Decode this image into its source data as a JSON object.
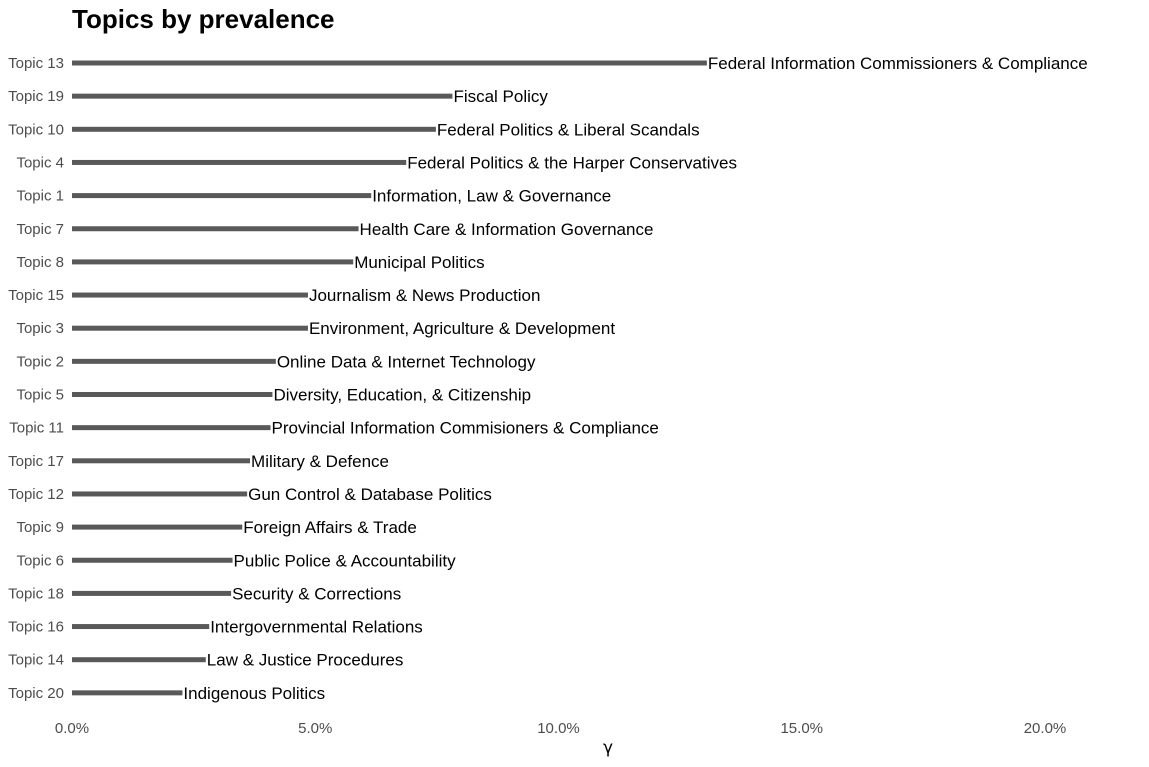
{
  "chart_data": {
    "type": "bar",
    "orientation": "horizontal",
    "title": "Topics by prevalence",
    "xlabel": "γ",
    "ylabel": "",
    "xlim": [
      0,
      0.22
    ],
    "xticks": [
      0,
      0.05,
      0.1,
      0.15,
      0.2
    ],
    "xtick_labels": [
      "0.0%",
      "5.0%",
      "10.0%",
      "15.0%",
      "20.0%"
    ],
    "grid": false,
    "bar_color": "#595959",
    "categories": [
      "Topic 13",
      "Topic 19",
      "Topic 10",
      "Topic 4",
      "Topic 1",
      "Topic 7",
      "Topic 8",
      "Topic 15",
      "Topic 3",
      "Topic 2",
      "Topic 5",
      "Topic 11",
      "Topic 17",
      "Topic 12",
      "Topic 9",
      "Topic 6",
      "Topic 18",
      "Topic 16",
      "Topic 14",
      "Topic 20"
    ],
    "values": [
      0.1305,
      0.0782,
      0.0748,
      0.0687,
      0.0615,
      0.0589,
      0.0578,
      0.0485,
      0.0485,
      0.0419,
      0.0412,
      0.0408,
      0.0366,
      0.036,
      0.035,
      0.033,
      0.0327,
      0.0282,
      0.0275,
      0.0227
    ],
    "bar_labels": [
      "Federal Information Commissioners & Compliance",
      "Fiscal Policy",
      "Federal Politics & Liberal Scandals",
      "Federal Politics & the Harper Conservatives",
      "Information, Law & Governance",
      "Health Care & Information Governance",
      "Municipal Politics",
      "Journalism & News Production",
      "Environment, Agriculture & Development",
      "Online Data & Internet Technology",
      "Diversity, Education, & Citizenship",
      "Provincial Information Commisioners & Compliance",
      "Military & Defence",
      "Gun Control & Database Politics",
      "Foreign Affairs & Trade",
      "Public Police & Accountability",
      "Security & Corrections",
      "Intergovernmental Relations",
      "Law & Justice Procedures",
      "Indigenous Politics"
    ]
  }
}
